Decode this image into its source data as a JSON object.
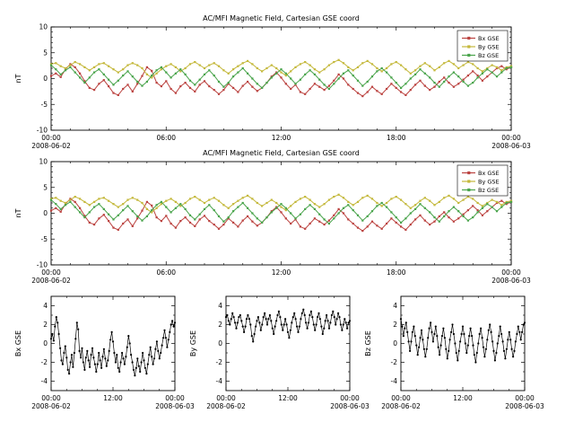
{
  "figure": {
    "bg_color": "#ffffff",
    "text_color": "#000000",
    "frame_color": "#000000"
  },
  "chart_data": [
    {
      "id": "top-panel-1",
      "type": "line",
      "title": "AC/MFI Magnetic Field, Cartesian GSE coord",
      "ylabel": "nT",
      "ylim": [
        -10,
        10
      ],
      "ytick_values": [
        10,
        5,
        0,
        -5,
        -10
      ],
      "ytick_labels": [
        "10",
        "5",
        "0",
        "-5",
        "-10"
      ],
      "xlim_hours": [
        0,
        24
      ],
      "x_hours_start": 0,
      "x_hours_step": 0.25,
      "xtick_hours": [
        0,
        6,
        12,
        18,
        24
      ],
      "xtick_labels": [
        "00:00",
        "06:00",
        "12:00",
        "18:00",
        "00:00"
      ],
      "x_start_date": "2008-06-02",
      "x_end_date": "2008-06-03",
      "legend": {
        "position": "top-right",
        "entries": [
          "Bx GSE",
          "By GSE",
          "Bz GSE"
        ]
      },
      "series": [
        {
          "name": "Bx GSE",
          "color": "#bb4340",
          "values": [
            0.5,
            1.0,
            0.3,
            1.8,
            2.8,
            2.2,
            1.0,
            -0.5,
            -1.8,
            -2.2,
            -1.0,
            -0.3,
            -1.5,
            -2.8,
            -3.2,
            -2.0,
            -1.2,
            -2.5,
            -1.0,
            0.5,
            2.2,
            1.5,
            -0.8,
            -1.5,
            -0.5,
            -2.0,
            -2.8,
            -1.5,
            -0.8,
            -1.8,
            -2.5,
            -1.2,
            -0.5,
            -1.5,
            -2.2,
            -3.0,
            -2.2,
            -1.0,
            -1.8,
            -2.6,
            -1.4,
            -0.6,
            -1.6,
            -2.4,
            -1.8,
            -0.8,
            0.4,
            1.2,
            0.2,
            -1.0,
            -2.0,
            -1.2,
            -2.6,
            -3.0,
            -2.0,
            -1.0,
            -1.6,
            -2.2,
            -1.4,
            -0.4,
            0.8,
            0.0,
            -1.2,
            -2.0,
            -2.8,
            -3.4,
            -2.6,
            -1.6,
            -2.4,
            -3.0,
            -2.0,
            -1.0,
            -1.8,
            -2.6,
            -3.2,
            -2.2,
            -1.2,
            -0.4,
            -1.4,
            -2.2,
            -1.6,
            -0.6,
            0.2,
            -0.8,
            -1.6,
            -1.0,
            -0.2,
            0.6,
            1.4,
            0.6,
            -0.4,
            0.4,
            1.2,
            2.0,
            2.4,
            1.8,
            2.2
          ]
        },
        {
          "name": "By GSE",
          "color": "#c4b83b",
          "values": [
            2.8,
            3.0,
            2.4,
            2.0,
            2.6,
            3.2,
            2.8,
            2.2,
            1.6,
            2.2,
            2.8,
            3.0,
            2.4,
            1.8,
            1.2,
            1.8,
            2.6,
            3.0,
            2.6,
            2.0,
            0.8,
            0.2,
            1.0,
            1.8,
            2.4,
            2.8,
            2.2,
            1.4,
            2.0,
            2.8,
            3.2,
            2.6,
            2.0,
            2.6,
            3.0,
            2.4,
            1.6,
            1.0,
            1.8,
            2.4,
            3.0,
            3.4,
            2.8,
            2.0,
            1.4,
            2.0,
            2.6,
            2.0,
            1.2,
            0.6,
            1.4,
            2.2,
            2.8,
            3.2,
            2.6,
            1.8,
            1.2,
            1.8,
            2.6,
            3.2,
            3.6,
            3.0,
            2.2,
            1.6,
            2.2,
            3.0,
            3.4,
            2.8,
            2.0,
            1.4,
            2.0,
            2.8,
            3.2,
            2.6,
            1.8,
            1.0,
            1.6,
            2.4,
            3.0,
            2.4,
            1.6,
            2.2,
            3.0,
            3.4,
            2.8,
            2.0,
            2.6,
            3.2,
            2.8,
            2.0,
            1.4,
            2.0,
            2.6,
            2.2,
            1.6,
            2.2,
            2.4
          ]
        },
        {
          "name": "Bz GSE",
          "color": "#49a44b",
          "values": [
            2.6,
            1.8,
            0.8,
            1.6,
            2.2,
            1.2,
            0.2,
            -0.8,
            0.2,
            1.2,
            1.8,
            0.8,
            -0.2,
            -1.2,
            -0.4,
            0.6,
            1.4,
            0.4,
            -0.6,
            -1.4,
            -0.6,
            0.6,
            1.6,
            2.2,
            1.2,
            0.2,
            1.0,
            1.8,
            0.8,
            -0.4,
            -1.2,
            -0.2,
            0.8,
            1.6,
            0.6,
            -0.6,
            -1.6,
            -0.8,
            0.4,
            1.2,
            2.0,
            1.0,
            0.0,
            -1.0,
            -1.8,
            -0.8,
            0.2,
            1.0,
            1.8,
            1.0,
            0.0,
            -1.0,
            -0.2,
            0.8,
            1.6,
            0.8,
            -0.2,
            -1.2,
            -2.0,
            -1.0,
            0.0,
            1.0,
            1.6,
            0.6,
            -0.4,
            -1.4,
            -0.6,
            0.4,
            1.4,
            2.0,
            1.2,
            0.2,
            -0.8,
            -1.8,
            -1.0,
            0.0,
            0.8,
            1.8,
            1.0,
            0.2,
            -0.8,
            -1.6,
            -0.6,
            0.4,
            1.2,
            0.4,
            -0.6,
            -1.4,
            -0.8,
            0.2,
            1.0,
            1.8,
            1.2,
            0.4,
            1.2,
            2.0,
            2.2
          ]
        }
      ]
    },
    {
      "id": "top-panel-2",
      "type": "line",
      "repeat_of_chart": 0,
      "title": "AC/MFI Magnetic Field, Cartesian GSE coord",
      "ylabel": "nT",
      "ytick_labels": [
        "10",
        "5",
        "0",
        "-5",
        "-10"
      ],
      "xtick_labels": [
        "00:00",
        "06:00",
        "12:00",
        "18:00",
        "00:00"
      ],
      "x_start_date": "2008-06-02",
      "x_end_date": "2008-06-03",
      "legend": {
        "position": "top-right",
        "entries": [
          "Bx GSE",
          "By GSE",
          "Bz GSE"
        ]
      }
    },
    {
      "id": "bottom-panel-bx",
      "type": "line",
      "ylabel": "Bx GSE",
      "color": "#000000",
      "ylim": [
        -5,
        5
      ],
      "ytick_values": [
        4,
        2,
        0,
        -2,
        -4
      ],
      "ytick_labels": [
        "4",
        "2",
        "0",
        "-2",
        "-4"
      ],
      "xlim_hours": [
        0,
        24
      ],
      "x_hours_start": 0,
      "x_hours_step": 0.25,
      "xtick_hours": [
        0,
        12,
        24
      ],
      "xtick_labels": [
        "00:00",
        "12:00",
        "00:00"
      ],
      "x_start_date": "2008-06-02",
      "x_end_date": "2008-06-03",
      "series_ref": {
        "chart": 0,
        "series": 0
      }
    },
    {
      "id": "bottom-panel-by",
      "type": "line",
      "ylabel": "By GSE",
      "color": "#000000",
      "ylim": [
        -5,
        5
      ],
      "ytick_values": [
        4,
        2,
        0,
        -2,
        -4
      ],
      "ytick_labels": [
        "4",
        "2",
        "0",
        "-2",
        "-4"
      ],
      "xlim_hours": [
        0,
        24
      ],
      "x_hours_start": 0,
      "x_hours_step": 0.25,
      "xtick_hours": [
        0,
        12,
        24
      ],
      "xtick_labels": [
        "00:00",
        "12:00",
        "00:00"
      ],
      "x_start_date": "2008-06-02",
      "x_end_date": "2008-06-03",
      "series_ref": {
        "chart": 0,
        "series": 1
      }
    },
    {
      "id": "bottom-panel-bz",
      "type": "line",
      "ylabel": "Bz GSE",
      "color": "#000000",
      "ylim": [
        -5,
        5
      ],
      "ytick_values": [
        4,
        2,
        0,
        -2,
        -4
      ],
      "ytick_labels": [
        "4",
        "2",
        "0",
        "-2",
        "-4"
      ],
      "xlim_hours": [
        0,
        24
      ],
      "x_hours_start": 0,
      "x_hours_step": 0.25,
      "xtick_hours": [
        0,
        12,
        24
      ],
      "xtick_labels": [
        "00:00",
        "12:00",
        "00:00"
      ],
      "x_start_date": "2008-06-02",
      "x_end_date": "2008-06-03",
      "series_ref": {
        "chart": 0,
        "series": 2
      }
    }
  ]
}
